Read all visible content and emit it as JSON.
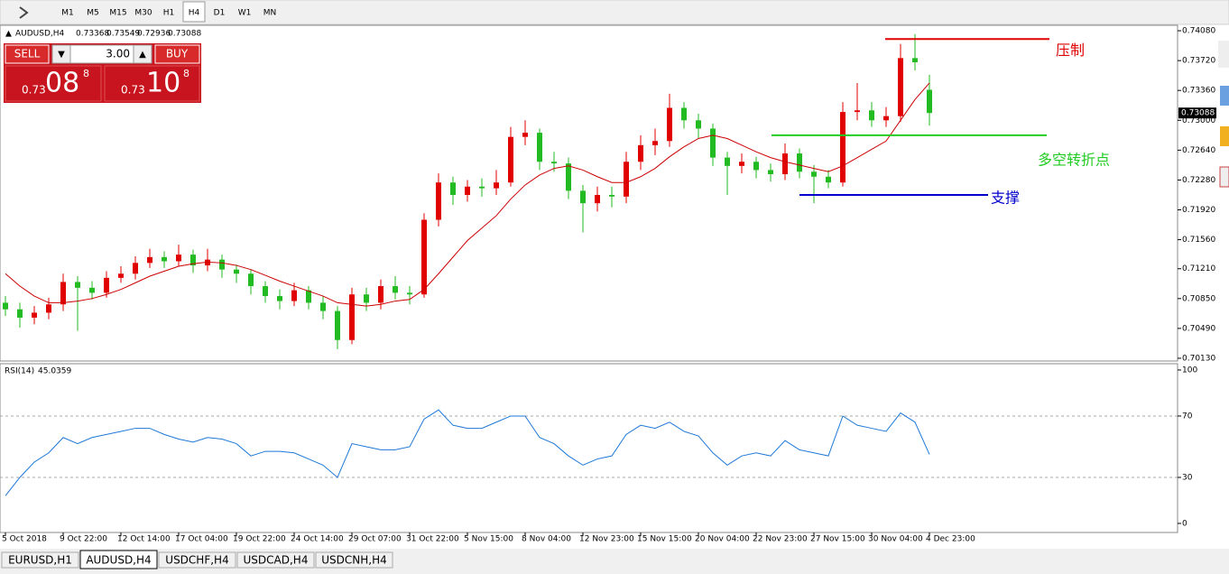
{
  "toolbar": {
    "timeframes": [
      "M1",
      "M5",
      "M15",
      "M30",
      "H1",
      "H4",
      "D1",
      "W1",
      "MN"
    ],
    "active": 5
  },
  "trade_panel": {
    "sell_label": "SELL",
    "buy_label": "BUY",
    "lot": "3.00",
    "sell_price": {
      "big_figure": "0.73",
      "pips": "08",
      "fraction": "8"
    },
    "buy_price": {
      "big_figure": "0.73",
      "pips": "10",
      "fraction": "8"
    }
  },
  "tabs": {
    "items": [
      "EURUSD,H1",
      "AUDUSD,H4",
      "USDCHF,H4",
      "USDCAD,H4",
      "USDCNH,H4"
    ],
    "active": 1
  },
  "chart_data": [
    {
      "type": "candlestick",
      "symbol": "AUDUSD,H4",
      "up_color": "#e00000",
      "down_color": "#22bb22",
      "categories": [
        "5 Oct 2018",
        null,
        null,
        null,
        "9 Oct 22:00",
        null,
        null,
        null,
        "12 Oct 14:00",
        null,
        null,
        null,
        "17 Oct 04:00",
        null,
        null,
        null,
        "19 Oct 22:00",
        null,
        null,
        null,
        "24 Oct 14:00",
        null,
        null,
        null,
        "29 Oct 07:00",
        null,
        null,
        null,
        "31 Oct 22:00",
        null,
        null,
        null,
        "5 Nov 15:00",
        null,
        null,
        null,
        "8 Nov 04:00",
        null,
        null,
        null,
        "12 Nov 23:00",
        null,
        null,
        null,
        "15 Nov 15:00",
        null,
        null,
        null,
        "20 Nov 04:00",
        null,
        null,
        null,
        "22 Nov 23:00",
        null,
        null,
        null,
        "27 Nov 15:00",
        null,
        null,
        null,
        "30 Nov 04:00",
        null,
        null,
        null,
        "4 Dec 23:00"
      ],
      "open": [
        0.708,
        0.7072,
        0.7062,
        0.7068,
        0.7078,
        0.7105,
        0.7098,
        0.7092,
        0.711,
        0.7115,
        0.7128,
        0.7135,
        0.713,
        0.7138,
        0.7125,
        0.7132,
        0.712,
        0.7115,
        0.71,
        0.7088,
        0.7082,
        0.7095,
        0.708,
        0.707,
        0.7035,
        0.709,
        0.708,
        0.71,
        0.7092,
        0.709,
        0.718,
        0.7225,
        0.721,
        0.722,
        0.7218,
        0.7225,
        0.728,
        0.7285,
        0.725,
        0.7248,
        0.7215,
        0.72,
        0.721,
        0.7208,
        0.725,
        0.727,
        0.7275,
        0.7315,
        0.73,
        0.729,
        0.7255,
        0.7245,
        0.725,
        0.724,
        0.7235,
        0.726,
        0.7238,
        0.7232,
        0.7225,
        0.731,
        0.7312,
        0.73,
        0.7305,
        0.7375,
        0.73368
      ],
      "high": [
        0.7088,
        0.708,
        0.7076,
        0.7086,
        0.7115,
        0.7112,
        0.7106,
        0.7118,
        0.7124,
        0.7136,
        0.7145,
        0.7142,
        0.715,
        0.7144,
        0.7145,
        0.7138,
        0.7126,
        0.712,
        0.7106,
        0.7096,
        0.7104,
        0.71,
        0.7088,
        0.7076,
        0.7098,
        0.7098,
        0.7108,
        0.7112,
        0.71,
        0.7188,
        0.7236,
        0.7232,
        0.7228,
        0.723,
        0.724,
        0.7292,
        0.73,
        0.729,
        0.7262,
        0.7255,
        0.7222,
        0.722,
        0.722,
        0.7262,
        0.7282,
        0.729,
        0.7332,
        0.7322,
        0.7308,
        0.7296,
        0.7262,
        0.726,
        0.7256,
        0.7248,
        0.7272,
        0.7266,
        0.7246,
        0.724,
        0.7322,
        0.7345,
        0.7322,
        0.7316,
        0.7392,
        0.7404,
        0.73549
      ],
      "low": [
        0.7064,
        0.705,
        0.7054,
        0.706,
        0.707,
        0.7046,
        0.7084,
        0.7086,
        0.7104,
        0.7108,
        0.7122,
        0.7122,
        0.7124,
        0.7116,
        0.7118,
        0.711,
        0.7104,
        0.709,
        0.708,
        0.7072,
        0.7076,
        0.7072,
        0.706,
        0.7024,
        0.703,
        0.707,
        0.7072,
        0.7084,
        0.7078,
        0.7086,
        0.7172,
        0.7198,
        0.7202,
        0.7208,
        0.721,
        0.722,
        0.727,
        0.724,
        0.7238,
        0.7205,
        0.7165,
        0.719,
        0.7195,
        0.72,
        0.724,
        0.7258,
        0.7268,
        0.729,
        0.7278,
        0.7245,
        0.721,
        0.7236,
        0.723,
        0.7226,
        0.7228,
        0.723,
        0.72,
        0.7218,
        0.722,
        0.73,
        0.7292,
        0.7292,
        0.7298,
        0.736,
        0.72936
      ],
      "close": [
        0.7072,
        0.7062,
        0.7068,
        0.7078,
        0.7105,
        0.7098,
        0.7092,
        0.711,
        0.7115,
        0.7128,
        0.7135,
        0.713,
        0.7138,
        0.7125,
        0.7132,
        0.712,
        0.7115,
        0.71,
        0.7088,
        0.7082,
        0.7095,
        0.708,
        0.707,
        0.7035,
        0.709,
        0.708,
        0.71,
        0.7092,
        0.709,
        0.718,
        0.7225,
        0.721,
        0.722,
        0.7218,
        0.7225,
        0.728,
        0.7285,
        0.725,
        0.7248,
        0.7215,
        0.72,
        0.721,
        0.7208,
        0.725,
        0.727,
        0.7275,
        0.7315,
        0.73,
        0.729,
        0.7255,
        0.7245,
        0.725,
        0.724,
        0.7235,
        0.726,
        0.7238,
        0.7232,
        0.7225,
        0.731,
        0.7312,
        0.73,
        0.7305,
        0.7375,
        0.737,
        0.73088
      ],
      "ma": {
        "color": "#cc0000",
        "values": [
          0.7115,
          0.71,
          0.7088,
          0.708,
          0.708,
          0.7082,
          0.7085,
          0.709,
          0.7096,
          0.7104,
          0.7112,
          0.7118,
          0.7124,
          0.7127,
          0.7129,
          0.7128,
          0.7125,
          0.712,
          0.7113,
          0.7106,
          0.71,
          0.7094,
          0.7088,
          0.708,
          0.7078,
          0.7076,
          0.7078,
          0.7082,
          0.7084,
          0.7096,
          0.7115,
          0.7135,
          0.7155,
          0.717,
          0.7185,
          0.7205,
          0.7222,
          0.7234,
          0.7242,
          0.7245,
          0.724,
          0.7232,
          0.7225,
          0.7225,
          0.7232,
          0.7242,
          0.7256,
          0.7268,
          0.7278,
          0.7282,
          0.7278,
          0.727,
          0.7262,
          0.7255,
          0.725,
          0.7246,
          0.7242,
          0.7238,
          0.7245,
          0.7255,
          0.7265,
          0.7275,
          0.73,
          0.7325,
          0.7345
        ]
      },
      "ylim": [
        0.70097,
        0.74146
      ],
      "yticks": [
        {
          "value": 0.7408,
          "label": "0.74080"
        },
        {
          "value": 0.7372,
          "label": "0.73720"
        },
        {
          "value": 0.7336,
          "label": "0.73360"
        },
        {
          "value": 0.73,
          "label": "0.73000"
        },
        {
          "value": 0.7264,
          "label": "0.72640"
        },
        {
          "value": 0.7228,
          "label": "0.72280"
        },
        {
          "value": 0.7192,
          "label": "0.71920"
        },
        {
          "value": 0.7156,
          "label": "0.71560"
        },
        {
          "value": 0.7121,
          "label": "0.71210"
        },
        {
          "value": 0.7085,
          "label": "0.70850"
        },
        {
          "value": 0.7049,
          "label": "0.70490"
        },
        {
          "value": 0.7013,
          "label": "0.70130"
        }
      ],
      "annotations": [
        {
          "text": "压制",
          "value": 0.7398,
          "color": "#e00000"
        },
        {
          "text": "多空转折点",
          "value": 0.7282,
          "color": "#22cc22"
        },
        {
          "text": "支撑",
          "value": 0.721,
          "color": "#0000cc"
        }
      ]
    },
    {
      "type": "line",
      "title": "RSI(14)",
      "color": "#1e78d8",
      "values": [
        18,
        30,
        40,
        46,
        56,
        52,
        56,
        58,
        60,
        62,
        62,
        58,
        55,
        53,
        56,
        55,
        52,
        44,
        47,
        47,
        46,
        42,
        38,
        30,
        52,
        50,
        48,
        48,
        50,
        68,
        74,
        64,
        62,
        62,
        66,
        70,
        70,
        56,
        52,
        44,
        38,
        42,
        44,
        58,
        64,
        62,
        66,
        60,
        57,
        46,
        38,
        44,
        46,
        44,
        54,
        48,
        46,
        44,
        70,
        64,
        62,
        60,
        72,
        66,
        45.0359
      ],
      "ylim": [
        -5.9,
        104.1
      ],
      "yticks": [
        0,
        30,
        70,
        100
      ],
      "levels": [
        30,
        70
      ]
    }
  ]
}
